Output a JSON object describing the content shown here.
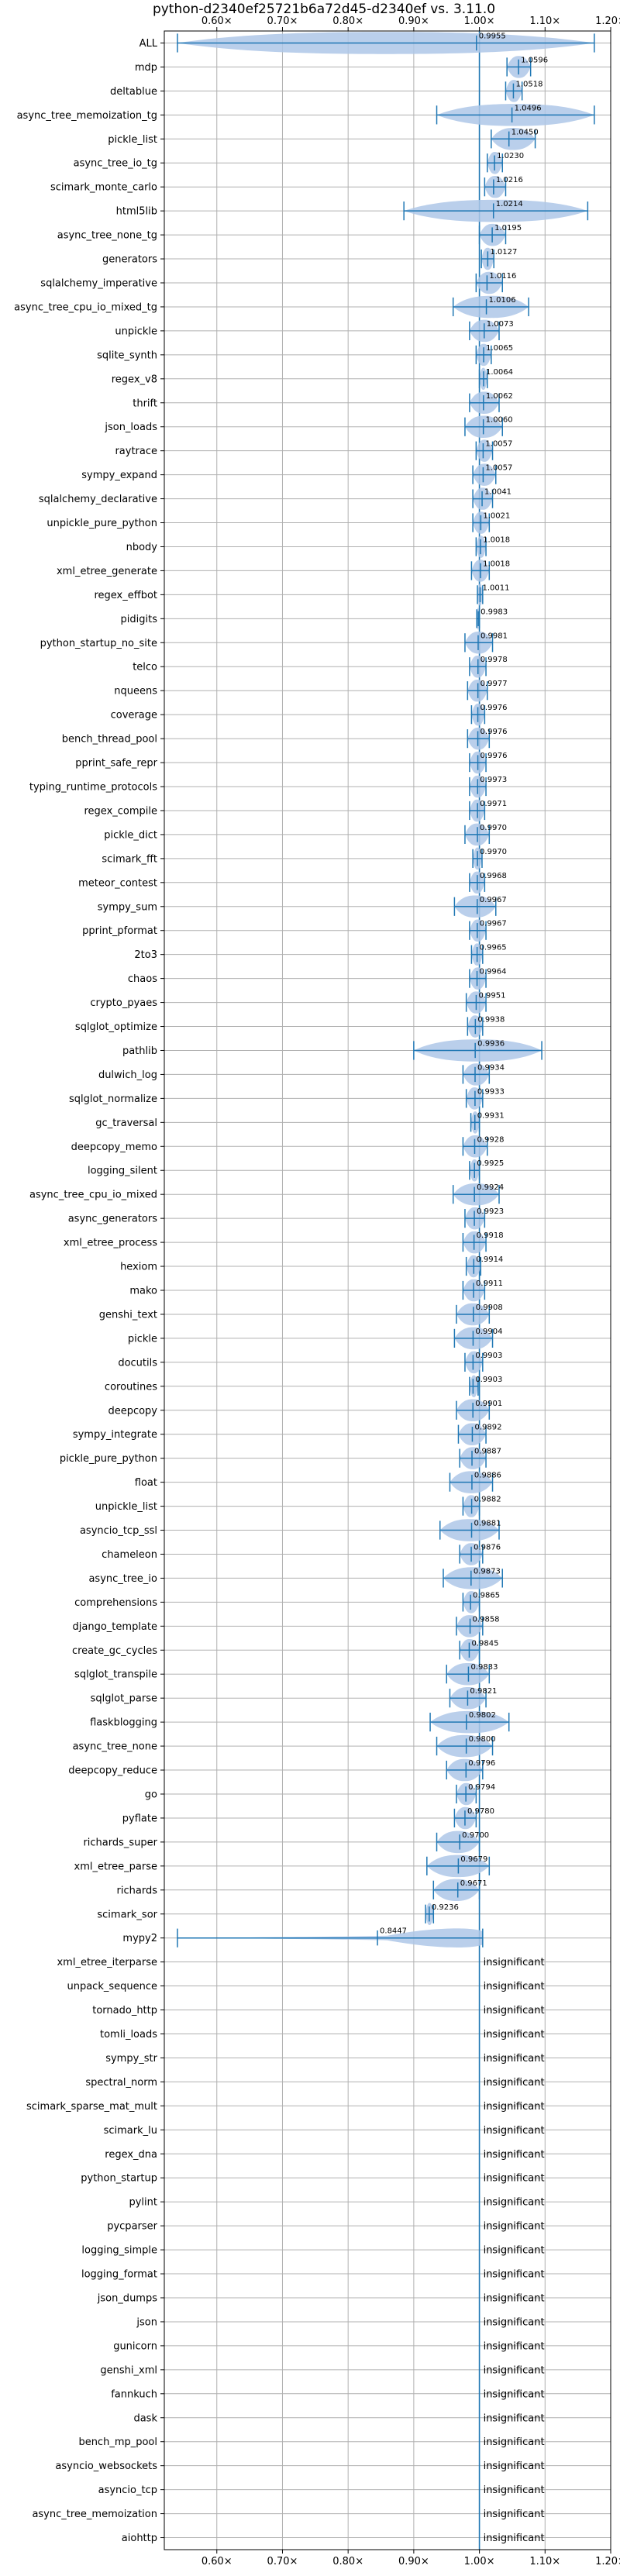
{
  "chart_data": {
    "type": "violin",
    "title": "python-d2340ef25721b6a72d45-d2340ef vs. 3.11.0",
    "xlabel": "",
    "ylabel": "",
    "xlim": [
      0.52,
      1.2
    ],
    "xticks": [
      0.6,
      0.7,
      0.8,
      0.9,
      1.0,
      1.1,
      1.2
    ],
    "xtick_labels": [
      "0.60×",
      "0.70×",
      "0.80×",
      "0.90×",
      "1.00×",
      "1.10×",
      "1.20×"
    ],
    "reference_x": 1.0,
    "grid": true,
    "color": "#1f77b4",
    "fill_color": "#aec7e8",
    "insignificant_label": "insignificant",
    "benchmarks": [
      {
        "name": "ALL",
        "value": 0.9955,
        "label": "0.9955",
        "lo": 0.54,
        "hi": 1.175,
        "w": 0.004
      },
      {
        "name": "mdp",
        "value": 1.0596,
        "label": "1.0596",
        "lo": 1.042,
        "hi": 1.078,
        "w": 0.012
      },
      {
        "name": "deltablue",
        "value": 1.0518,
        "label": "1.0518",
        "lo": 1.04,
        "hi": 1.065,
        "w": 0.01
      },
      {
        "name": "async_tree_memoization_tg",
        "value": 1.0496,
        "label": "1.0496",
        "lo": 0.935,
        "hi": 1.175,
        "w": 0.11
      },
      {
        "name": "pickle_list",
        "value": 1.045,
        "label": "1.0450",
        "lo": 1.018,
        "hi": 1.085,
        "w": 0.03
      },
      {
        "name": "async_tree_io_tg",
        "value": 1.023,
        "label": "1.0230",
        "lo": 1.012,
        "hi": 1.035,
        "w": 0.01
      },
      {
        "name": "scimark_monte_carlo",
        "value": 1.0216,
        "label": "1.0216",
        "lo": 1.008,
        "hi": 1.04,
        "w": 0.012
      },
      {
        "name": "html5lib",
        "value": 1.0214,
        "label": "1.0214",
        "lo": 0.885,
        "hi": 1.165,
        "w": 0.12
      },
      {
        "name": "async_tree_none_tg",
        "value": 1.0195,
        "label": "1.0195",
        "lo": 1.0,
        "hi": 1.04,
        "w": 0.02
      },
      {
        "name": "generators",
        "value": 1.0127,
        "label": "1.0127",
        "lo": 1.003,
        "hi": 1.022,
        "w": 0.01
      },
      {
        "name": "sqlalchemy_imperative",
        "value": 1.0116,
        "label": "1.0116",
        "lo": 0.995,
        "hi": 1.035,
        "w": 0.018
      },
      {
        "name": "async_tree_cpu_io_mixed_tg",
        "value": 1.0106,
        "label": "1.0106",
        "lo": 0.96,
        "hi": 1.075,
        "w": 0.05
      },
      {
        "name": "unpickle",
        "value": 1.0073,
        "label": "1.0073",
        "lo": 0.985,
        "hi": 1.03,
        "w": 0.02
      },
      {
        "name": "sqlite_synth",
        "value": 1.0065,
        "label": "1.0065",
        "lo": 0.995,
        "hi": 1.018,
        "w": 0.01
      },
      {
        "name": "regex_v8",
        "value": 1.0064,
        "label": "1.0064",
        "lo": 1.0,
        "hi": 1.012,
        "w": 0.006
      },
      {
        "name": "thrift",
        "value": 1.0062,
        "label": "1.0062",
        "lo": 0.985,
        "hi": 1.03,
        "w": 0.02
      },
      {
        "name": "json_loads",
        "value": 1.006,
        "label": "1.0060",
        "lo": 0.978,
        "hi": 1.035,
        "w": 0.025
      },
      {
        "name": "raytrace",
        "value": 1.0057,
        "label": "1.0057",
        "lo": 0.995,
        "hi": 1.02,
        "w": 0.01
      },
      {
        "name": "sympy_expand",
        "value": 1.0057,
        "label": "1.0057",
        "lo": 0.99,
        "hi": 1.025,
        "w": 0.015
      },
      {
        "name": "sqlalchemy_declarative",
        "value": 1.0041,
        "label": "1.0041",
        "lo": 0.99,
        "hi": 1.02,
        "w": 0.013
      },
      {
        "name": "unpickle_pure_python",
        "value": 1.0021,
        "label": "1.0021",
        "lo": 0.99,
        "hi": 1.015,
        "w": 0.012
      },
      {
        "name": "nbody",
        "value": 1.0018,
        "label": "1.0018",
        "lo": 0.995,
        "hi": 1.01,
        "w": 0.008
      },
      {
        "name": "xml_etree_generate",
        "value": 1.0018,
        "label": "1.0018",
        "lo": 0.988,
        "hi": 1.015,
        "w": 0.012
      },
      {
        "name": "regex_effbot",
        "value": 1.0011,
        "label": "1.0011",
        "lo": 0.997,
        "hi": 1.005,
        "w": 0.004
      },
      {
        "name": "pidigits",
        "value": 0.9983,
        "label": "0.9983",
        "lo": 0.996,
        "hi": 1.0,
        "w": 0.003
      },
      {
        "name": "python_startup_no_site",
        "value": 0.9981,
        "label": "0.9981",
        "lo": 0.978,
        "hi": 1.02,
        "w": 0.02
      },
      {
        "name": "telco",
        "value": 0.9978,
        "label": "0.9978",
        "lo": 0.985,
        "hi": 1.01,
        "w": 0.012
      },
      {
        "name": "nqueens",
        "value": 0.9977,
        "label": "0.9977",
        "lo": 0.982,
        "hi": 1.012,
        "w": 0.013
      },
      {
        "name": "coverage",
        "value": 0.9976,
        "label": "0.9976",
        "lo": 0.988,
        "hi": 1.008,
        "w": 0.008
      },
      {
        "name": "bench_thread_pool",
        "value": 0.9976,
        "label": "0.9976",
        "lo": 0.982,
        "hi": 1.015,
        "w": 0.015
      },
      {
        "name": "pprint_safe_repr",
        "value": 0.9976,
        "label": "0.9976",
        "lo": 0.985,
        "hi": 1.01,
        "w": 0.012
      },
      {
        "name": "typing_runtime_protocols",
        "value": 0.9973,
        "label": "0.9973",
        "lo": 0.985,
        "hi": 1.01,
        "w": 0.012
      },
      {
        "name": "regex_compile",
        "value": 0.9971,
        "label": "0.9971",
        "lo": 0.985,
        "hi": 1.008,
        "w": 0.01
      },
      {
        "name": "pickle_dict",
        "value": 0.997,
        "label": "0.9970",
        "lo": 0.978,
        "hi": 1.015,
        "w": 0.015
      },
      {
        "name": "scimark_fft",
        "value": 0.997,
        "label": "0.9970",
        "lo": 0.99,
        "hi": 1.004,
        "w": 0.006
      },
      {
        "name": "meteor_contest",
        "value": 0.9968,
        "label": "0.9968",
        "lo": 0.985,
        "hi": 1.008,
        "w": 0.01
      },
      {
        "name": "sympy_sum",
        "value": 0.9967,
        "label": "0.9967",
        "lo": 0.962,
        "hi": 1.025,
        "w": 0.025
      },
      {
        "name": "pprint_pformat",
        "value": 0.9967,
        "label": "0.9967",
        "lo": 0.985,
        "hi": 1.01,
        "w": 0.012
      },
      {
        "name": "2to3",
        "value": 0.9965,
        "label": "0.9965",
        "lo": 0.988,
        "hi": 1.005,
        "w": 0.008
      },
      {
        "name": "chaos",
        "value": 0.9964,
        "label": "0.9964",
        "lo": 0.985,
        "hi": 1.01,
        "w": 0.012
      },
      {
        "name": "crypto_pyaes",
        "value": 0.9951,
        "label": "0.9951",
        "lo": 0.98,
        "hi": 1.01,
        "w": 0.013
      },
      {
        "name": "sqlglot_optimize",
        "value": 0.9938,
        "label": "0.9938",
        "lo": 0.982,
        "hi": 1.005,
        "w": 0.01
      },
      {
        "name": "pathlib",
        "value": 0.9936,
        "label": "0.9936",
        "lo": 0.9,
        "hi": 1.095,
        "w": 0.1
      },
      {
        "name": "dulwich_log",
        "value": 0.9934,
        "label": "0.9934",
        "lo": 0.975,
        "hi": 1.015,
        "w": 0.018
      },
      {
        "name": "sqlglot_normalize",
        "value": 0.9933,
        "label": "0.9933",
        "lo": 0.98,
        "hi": 1.005,
        "w": 0.012
      },
      {
        "name": "gc_traversal",
        "value": 0.9931,
        "label": "0.9931",
        "lo": 0.987,
        "hi": 1.0,
        "w": 0.006
      },
      {
        "name": "deepcopy_memo",
        "value": 0.9928,
        "label": "0.9928",
        "lo": 0.975,
        "hi": 1.012,
        "w": 0.016
      },
      {
        "name": "logging_silent",
        "value": 0.9925,
        "label": "0.9925",
        "lo": 0.985,
        "hi": 1.0,
        "w": 0.007
      },
      {
        "name": "async_tree_cpu_io_mixed",
        "value": 0.9924,
        "label": "0.9924",
        "lo": 0.96,
        "hi": 1.03,
        "w": 0.028
      },
      {
        "name": "async_generators",
        "value": 0.9923,
        "label": "0.9923",
        "lo": 0.978,
        "hi": 1.008,
        "w": 0.013
      },
      {
        "name": "xml_etree_process",
        "value": 0.9918,
        "label": "0.9918",
        "lo": 0.975,
        "hi": 1.01,
        "w": 0.015
      },
      {
        "name": "hexiom",
        "value": 0.9914,
        "label": "0.9914",
        "lo": 0.98,
        "hi": 1.002,
        "w": 0.01
      },
      {
        "name": "mako",
        "value": 0.9911,
        "label": "0.9911",
        "lo": 0.975,
        "hi": 1.008,
        "w": 0.014
      },
      {
        "name": "genshi_text",
        "value": 0.9908,
        "label": "0.9908",
        "lo": 0.965,
        "hi": 1.015,
        "w": 0.022
      },
      {
        "name": "pickle",
        "value": 0.9904,
        "label": "0.9904",
        "lo": 0.962,
        "hi": 1.02,
        "w": 0.025
      },
      {
        "name": "docutils",
        "value": 0.9903,
        "label": "0.9903",
        "lo": 0.978,
        "hi": 1.005,
        "w": 0.012
      },
      {
        "name": "coroutines",
        "value": 0.9903,
        "label": "0.9903",
        "lo": 0.985,
        "hi": 0.998,
        "w": 0.006
      },
      {
        "name": "deepcopy",
        "value": 0.9901,
        "label": "0.9901",
        "lo": 0.965,
        "hi": 1.015,
        "w": 0.022
      },
      {
        "name": "sympy_integrate",
        "value": 0.9892,
        "label": "0.9892",
        "lo": 0.968,
        "hi": 1.01,
        "w": 0.018
      },
      {
        "name": "pickle_pure_python",
        "value": 0.9887,
        "label": "0.9887",
        "lo": 0.97,
        "hi": 1.01,
        "w": 0.018
      },
      {
        "name": "float",
        "value": 0.9886,
        "label": "0.9886",
        "lo": 0.955,
        "hi": 1.02,
        "w": 0.028
      },
      {
        "name": "unpickle_list",
        "value": 0.9882,
        "label": "0.9882",
        "lo": 0.975,
        "hi": 1.0,
        "w": 0.012
      },
      {
        "name": "asyncio_tcp_ssl",
        "value": 0.9881,
        "label": "0.9881",
        "lo": 0.94,
        "hi": 1.03,
        "w": 0.04
      },
      {
        "name": "chameleon",
        "value": 0.9876,
        "label": "0.9876",
        "lo": 0.97,
        "hi": 1.005,
        "w": 0.015
      },
      {
        "name": "async_tree_io",
        "value": 0.9873,
        "label": "0.9873",
        "lo": 0.945,
        "hi": 1.035,
        "w": 0.04
      },
      {
        "name": "comprehensions",
        "value": 0.9865,
        "label": "0.9865",
        "lo": 0.975,
        "hi": 1.0,
        "w": 0.012
      },
      {
        "name": "django_template",
        "value": 0.9858,
        "label": "0.9858",
        "lo": 0.965,
        "hi": 1.005,
        "w": 0.018
      },
      {
        "name": "create_gc_cycles",
        "value": 0.9845,
        "label": "0.9845",
        "lo": 0.97,
        "hi": 1.0,
        "w": 0.013
      },
      {
        "name": "sqlglot_transpile",
        "value": 0.9833,
        "label": "0.9833",
        "lo": 0.95,
        "hi": 1.015,
        "w": 0.03
      },
      {
        "name": "sqlglot_parse",
        "value": 0.9821,
        "label": "0.9821",
        "lo": 0.955,
        "hi": 1.01,
        "w": 0.025
      },
      {
        "name": "flaskblogging",
        "value": 0.9802,
        "label": "0.9802",
        "lo": 0.925,
        "hi": 1.045,
        "w": 0.05
      },
      {
        "name": "async_tree_none",
        "value": 0.98,
        "label": "0.9800",
        "lo": 0.935,
        "hi": 1.02,
        "w": 0.035
      },
      {
        "name": "deepcopy_reduce",
        "value": 0.9796,
        "label": "0.9796",
        "lo": 0.95,
        "hi": 1.005,
        "w": 0.025
      },
      {
        "name": "go",
        "value": 0.9794,
        "label": "0.9794",
        "lo": 0.965,
        "hi": 0.995,
        "w": 0.013
      },
      {
        "name": "pyflate",
        "value": 0.978,
        "label": "0.9780",
        "lo": 0.962,
        "hi": 0.995,
        "w": 0.014
      },
      {
        "name": "richards_super",
        "value": 0.97,
        "label": "0.9700",
        "lo": 0.935,
        "hi": 1.0,
        "w": 0.03
      },
      {
        "name": "xml_etree_parse",
        "value": 0.9679,
        "label": "0.9679",
        "lo": 0.92,
        "hi": 1.015,
        "w": 0.04
      },
      {
        "name": "richards",
        "value": 0.9671,
        "label": "0.9671",
        "lo": 0.93,
        "hi": 1.0,
        "w": 0.03
      },
      {
        "name": "scimark_sor",
        "value": 0.9236,
        "label": "0.9236",
        "lo": 0.918,
        "hi": 0.93,
        "w": 0.006
      },
      {
        "name": "mypy2",
        "value": 0.8447,
        "label": "0.8447",
        "lo": 0.54,
        "hi": 1.005,
        "w": 0.09,
        "special": "mypy2"
      },
      {
        "name": "xml_etree_iterparse",
        "insignificant": true
      },
      {
        "name": "unpack_sequence",
        "insignificant": true
      },
      {
        "name": "tornado_http",
        "insignificant": true
      },
      {
        "name": "tomli_loads",
        "insignificant": true
      },
      {
        "name": "sympy_str",
        "insignificant": true
      },
      {
        "name": "spectral_norm",
        "insignificant": true
      },
      {
        "name": "scimark_sparse_mat_mult",
        "insignificant": true
      },
      {
        "name": "scimark_lu",
        "insignificant": true
      },
      {
        "name": "regex_dna",
        "insignificant": true
      },
      {
        "name": "python_startup",
        "insignificant": true
      },
      {
        "name": "pylint",
        "insignificant": true
      },
      {
        "name": "pycparser",
        "insignificant": true
      },
      {
        "name": "logging_simple",
        "insignificant": true
      },
      {
        "name": "logging_format",
        "insignificant": true
      },
      {
        "name": "json_dumps",
        "insignificant": true
      },
      {
        "name": "json",
        "insignificant": true
      },
      {
        "name": "gunicorn",
        "insignificant": true
      },
      {
        "name": "genshi_xml",
        "insignificant": true
      },
      {
        "name": "fannkuch",
        "insignificant": true
      },
      {
        "name": "dask",
        "insignificant": true
      },
      {
        "name": "bench_mp_pool",
        "insignificant": true
      },
      {
        "name": "asyncio_websockets",
        "insignificant": true
      },
      {
        "name": "asyncio_tcp",
        "insignificant": true
      },
      {
        "name": "async_tree_memoization",
        "insignificant": true
      },
      {
        "name": "aiohttp",
        "insignificant": true
      }
    ]
  }
}
